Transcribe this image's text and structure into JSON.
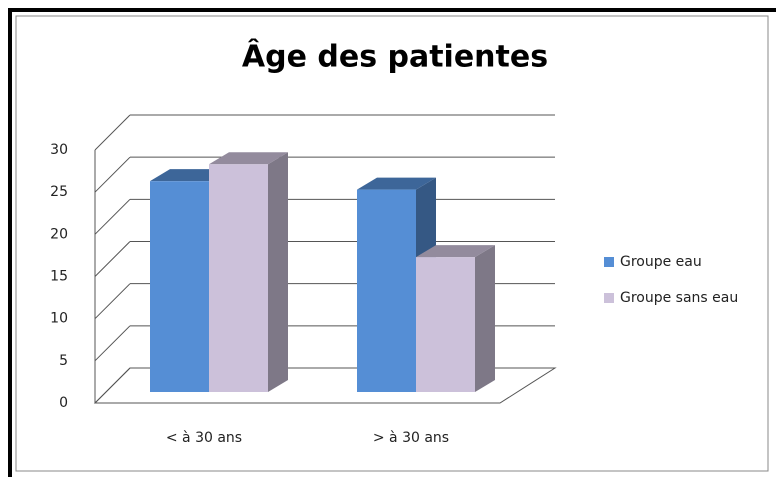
{
  "chart_data": {
    "type": "bar3d",
    "title": "Âge des patientes",
    "categories": [
      "< à 30 ans",
      "> à 30 ans"
    ],
    "series": [
      {
        "name": "Groupe eau",
        "color": "#558ed5",
        "values": [
          25,
          24
        ]
      },
      {
        "name": "Groupe sans eau",
        "color": "#ccc1da",
        "values": [
          27,
          16
        ]
      }
    ],
    "ylim": [
      0,
      30
    ],
    "yticks": [
      0,
      5,
      10,
      15,
      20,
      25,
      30
    ],
    "grid": true,
    "legend": "right"
  }
}
